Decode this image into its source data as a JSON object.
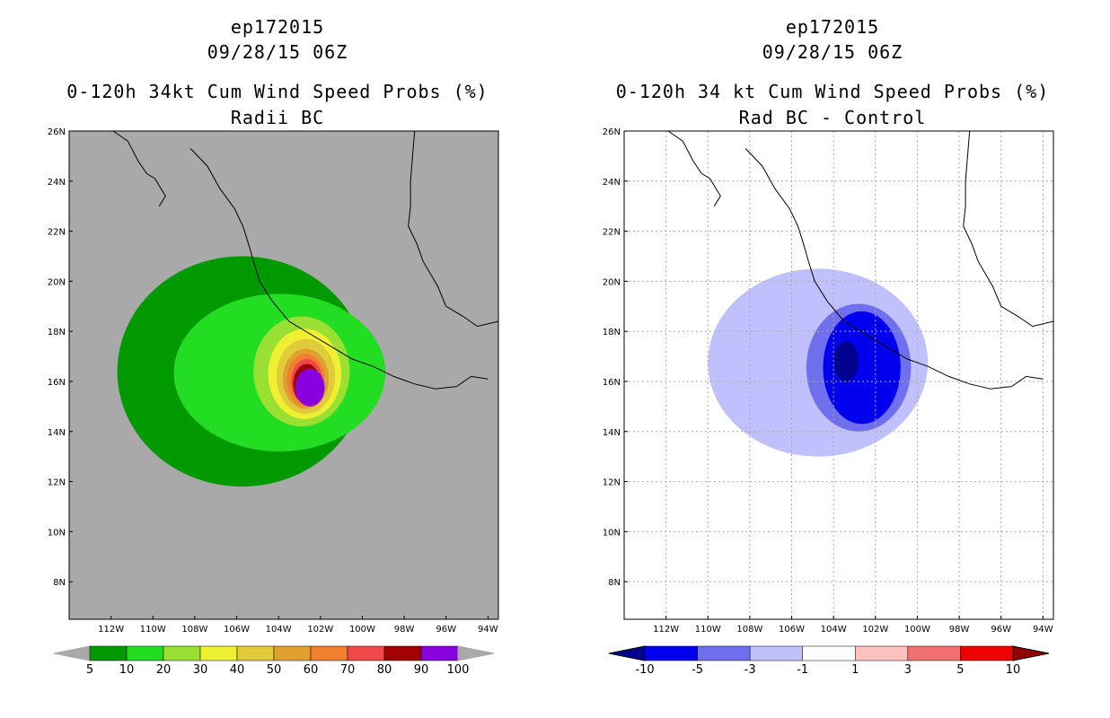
{
  "chart_data": [
    {
      "type": "heatmap",
      "name": "left",
      "title_lines": [
        "ep172015",
        "09/28/15 06Z",
        "0-120h 34kt Cum Wind Speed Probs (%)",
        "Radii BC"
      ],
      "xlim": [
        -114,
        -93.5
      ],
      "ylim": [
        6.5,
        26
      ],
      "x_ticks": [
        -112,
        -110,
        -108,
        -106,
        -104,
        -102,
        -100,
        -98,
        -96,
        -94
      ],
      "x_tick_labels": [
        "112W",
        "110W",
        "108W",
        "106W",
        "104W",
        "102W",
        "100W",
        "98W",
        "96W",
        "94W"
      ],
      "y_ticks": [
        8,
        10,
        12,
        14,
        16,
        18,
        20,
        22,
        24,
        26
      ],
      "y_tick_labels": [
        "8N",
        "10N",
        "12N",
        "14N",
        "16N",
        "18N",
        "20N",
        "22N",
        "24N",
        "26N"
      ],
      "grid": false,
      "background_color": "#a9a9a9",
      "storm_center": {
        "lon": -102.5,
        "lat": 15.8
      },
      "contour_levels": [
        5,
        10,
        20,
        30,
        40,
        50,
        60,
        70,
        80,
        90,
        100
      ],
      "colorbar": {
        "labels": [
          "5",
          "10",
          "20",
          "30",
          "40",
          "50",
          "60",
          "70",
          "80",
          "90",
          "100"
        ],
        "colors": [
          "#a9a9a9",
          "#009900",
          "#22dd22",
          "#99e033",
          "#f0f033",
          "#e0cc3a",
          "#e0a030",
          "#f08030",
          "#f04848",
          "#a00000",
          "#8800dd",
          "#a9a9a9"
        ]
      },
      "filled_regions": [
        {
          "level": 5,
          "color": "#009900",
          "lon_range": [
            -111.7,
            -99.8
          ],
          "lat_range": [
            11.8,
            21.0
          ]
        },
        {
          "level": 10,
          "color": "#22dd22",
          "lon_range": [
            -109.0,
            -98.9
          ],
          "lat_range": [
            13.2,
            19.5
          ]
        },
        {
          "level": 20,
          "color": "#99e033",
          "lon_range": [
            -105.2,
            -100.6
          ],
          "lat_range": [
            14.2,
            18.6
          ]
        },
        {
          "level": 30,
          "color": "#f0f033",
          "lon_range": [
            -104.5,
            -101.0
          ],
          "lat_range": [
            14.5,
            18.1
          ]
        },
        {
          "level": 40,
          "color": "#e0cc3a",
          "lon_range": [
            -104.1,
            -101.3
          ],
          "lat_range": [
            14.7,
            17.7
          ]
        },
        {
          "level": 50,
          "color": "#e0a030",
          "lon_range": [
            -103.8,
            -101.6
          ],
          "lat_range": [
            14.9,
            17.3
          ]
        },
        {
          "level": 60,
          "color": "#f08030",
          "lon_range": [
            -103.6,
            -101.8
          ],
          "lat_range": [
            15.0,
            17.1
          ]
        },
        {
          "level": 70,
          "color": "#f04848",
          "lon_range": [
            -103.4,
            -101.9
          ],
          "lat_range": [
            15.1,
            16.9
          ]
        },
        {
          "level": 80,
          "color": "#a00000",
          "lon_range": [
            -103.3,
            -102.0
          ],
          "lat_range": [
            15.1,
            16.7
          ]
        },
        {
          "level": 90,
          "color": "#8800dd",
          "lon_range": [
            -103.2,
            -101.8
          ],
          "lat_range": [
            15.0,
            16.5
          ]
        }
      ]
    },
    {
      "type": "heatmap",
      "name": "right",
      "title_lines": [
        "ep172015",
        "09/28/15 06Z",
        "0-120h 34 kt Cum Wind Speed Probs (%)",
        "Rad BC - Control"
      ],
      "xlim": [
        -114,
        -93.5
      ],
      "ylim": [
        6.5,
        26
      ],
      "x_ticks": [
        -112,
        -110,
        -108,
        -106,
        -104,
        -102,
        -100,
        -98,
        -96,
        -94
      ],
      "x_tick_labels": [
        "112W",
        "110W",
        "108W",
        "106W",
        "104W",
        "102W",
        "100W",
        "98W",
        "96W",
        "94W"
      ],
      "y_ticks": [
        8,
        10,
        12,
        14,
        16,
        18,
        20,
        22,
        24,
        26
      ],
      "y_tick_labels": [
        "8N",
        "10N",
        "12N",
        "14N",
        "16N",
        "18N",
        "20N",
        "22N",
        "24N",
        "26N"
      ],
      "grid": true,
      "background_color": "#ffffff",
      "contour_levels": [
        -10,
        -5,
        -3,
        -1,
        1,
        3,
        5,
        10
      ],
      "colorbar": {
        "labels": [
          "-10",
          "-5",
          "-3",
          "-1",
          "1",
          "3",
          "5",
          "10"
        ],
        "colors": [
          "#000090",
          "#0000ee",
          "#7070ee",
          "#c0c0ff",
          "#ffffff",
          "#ffc0c0",
          "#f07070",
          "#ee0000",
          "#900000"
        ]
      },
      "filled_regions": [
        {
          "level": -1,
          "color": "#c0c0ff",
          "lon_range": [
            -110.0,
            -99.5
          ],
          "lat_range": [
            13.0,
            20.5
          ]
        },
        {
          "level": -3,
          "color": "#7070ee",
          "lon_range": [
            -105.3,
            -100.3
          ],
          "lat_range": [
            14.0,
            19.1
          ]
        },
        {
          "level": -5,
          "color": "#0000ee",
          "lon_range": [
            -104.5,
            -100.8
          ],
          "lat_range": [
            14.3,
            18.8
          ]
        },
        {
          "level": -10,
          "color": "#000090",
          "lon_range": [
            -104.0,
            -102.8
          ],
          "lat_range": [
            16.0,
            17.6
          ]
        }
      ]
    }
  ]
}
